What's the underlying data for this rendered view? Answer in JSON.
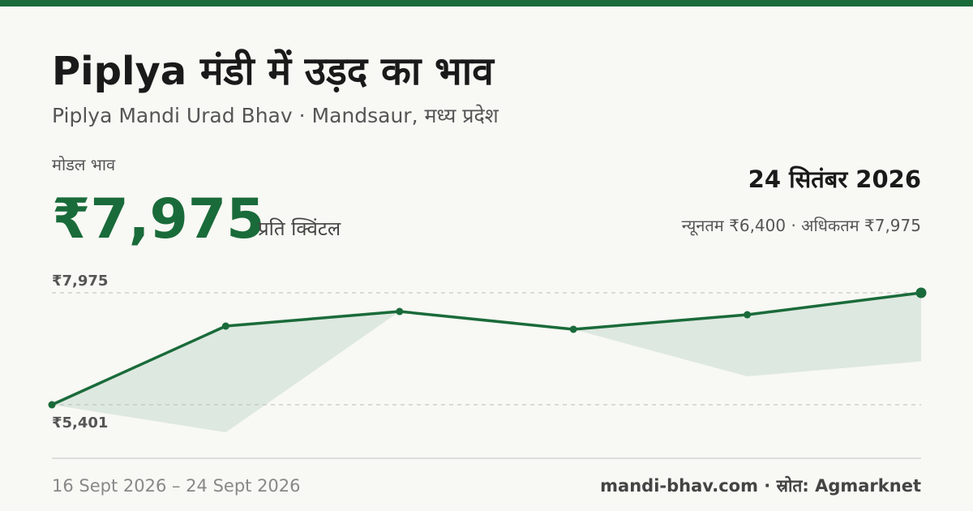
{
  "header": {
    "title": "Piplya मंडी में उड़द का भाव",
    "subtitle": "Piplya Mandi Urad Bhav · Mandsaur, मध्य प्रदेश",
    "price_label": "मोडल भाव",
    "price": "₹7,975",
    "unit": "प्रति क्विंटल",
    "date": "24 सितंबर 2026",
    "range": "न्यूनतम ₹6,400 · अधिकतम ₹7,975"
  },
  "chart_data": {
    "type": "line",
    "categories": [
      null,
      null,
      null,
      null,
      null,
      null
    ],
    "series": [
      {
        "color": "#1a6b3a",
        "values": [
          5401,
          7210,
          7546,
          7136,
          7471,
          7975
        ]
      },
      {
        "color": "#dde8e0",
        "values": [
          5401,
          4767,
          7546,
          7136,
          6054,
          6400
        ]
      }
    ],
    "ylim": [
      4170,
      8367
    ],
    "yticks": [
      {
        "value": 5401,
        "label": "₹5,401"
      },
      {
        "value": 7975,
        "label": "₹7,975"
      }
    ]
  },
  "footer": {
    "dates": "16 Sept 2026 – 24 Sept 2026",
    "source": "mandi-bhav.com · स्रोत: Agmarknet"
  }
}
